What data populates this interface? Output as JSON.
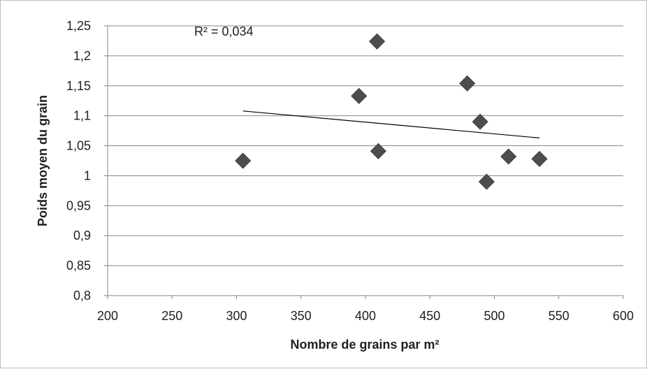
{
  "chart_data": {
    "type": "scatter",
    "title": "",
    "xlabel": "Nombre de grains par m²",
    "ylabel": "Poids moyen du grain",
    "xlim": [
      200,
      600
    ],
    "ylim": [
      0.8,
      1.25
    ],
    "x_ticks": [
      "200",
      "250",
      "300",
      "350",
      "400",
      "450",
      "500",
      "550",
      "600"
    ],
    "y_ticks": [
      "1,25",
      "1,2",
      "1,15",
      "1,1",
      "1,05",
      "1",
      "0,95",
      "0,9",
      "0,85",
      "0,8"
    ],
    "grid": "horizontal",
    "legend": "none",
    "marker": "diamond",
    "marker_color": "#4d4d4d",
    "trendline_color": "#000000",
    "series": [
      {
        "points": [
          {
            "x": 305,
            "y": 1.025
          },
          {
            "x": 395,
            "y": 1.133
          },
          {
            "x": 409,
            "y": 1.224
          },
          {
            "x": 410,
            "y": 1.041
          },
          {
            "x": 479,
            "y": 1.154
          },
          {
            "x": 489,
            "y": 1.09
          },
          {
            "x": 494,
            "y": 0.99
          },
          {
            "x": 511,
            "y": 1.032
          },
          {
            "x": 535,
            "y": 1.028
          }
        ]
      }
    ],
    "trendline": {
      "type": "linear",
      "x_range": [
        305,
        535
      ],
      "y_range": [
        1.108,
        1.063
      ]
    },
    "annotations": [
      {
        "text": "R² = 0,034"
      }
    ]
  }
}
